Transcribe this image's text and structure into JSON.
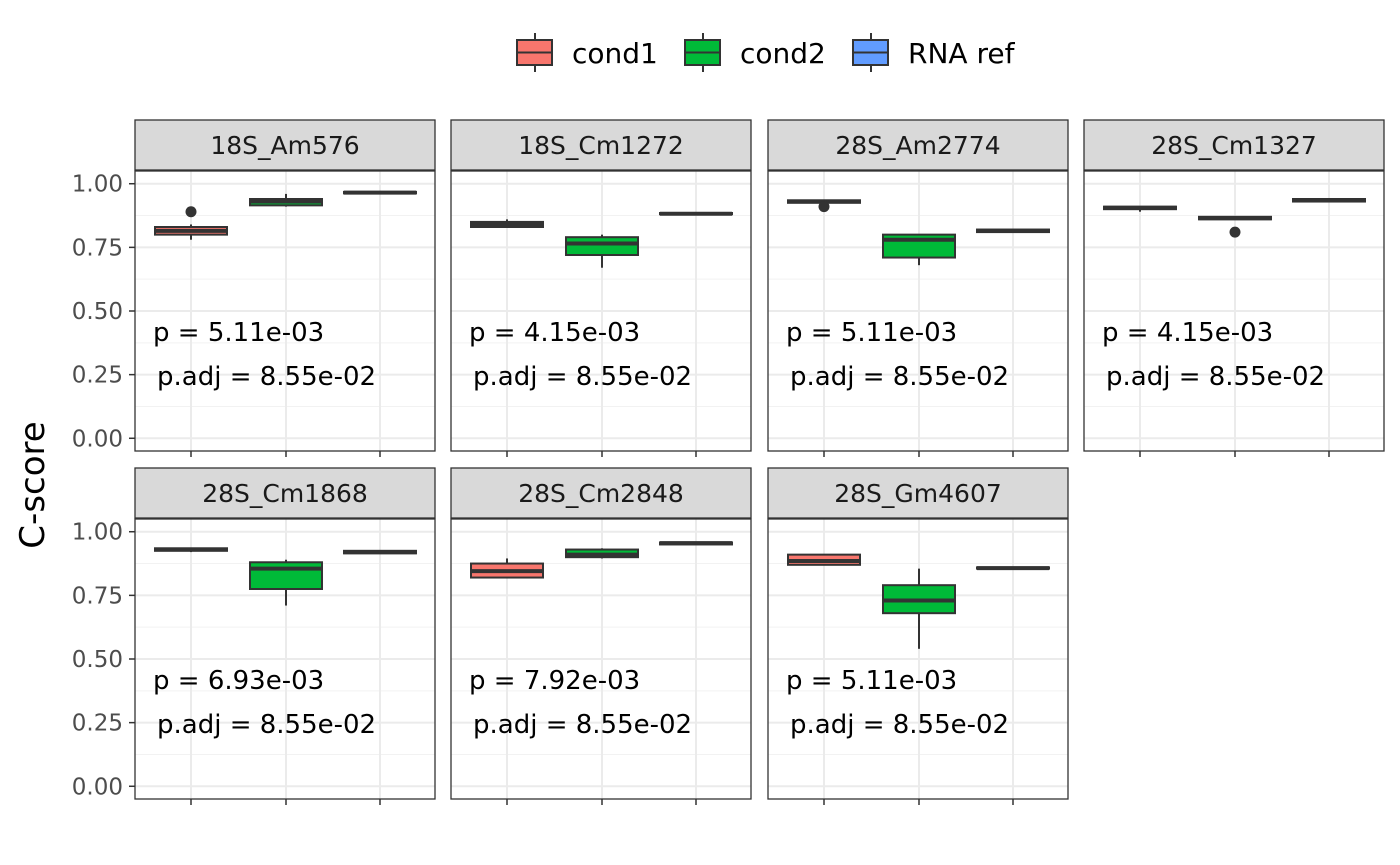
{
  "chart_data": {
    "type": "boxplot",
    "ylabel": "C-score",
    "xlabel": "",
    "ylim": [
      0,
      1.2
    ],
    "yticks": [
      "0.00",
      "0.25",
      "0.50",
      "0.75",
      "1.00"
    ],
    "grid": true,
    "legend_position": "top",
    "legend": [
      {
        "name": "cond1",
        "color": "#F8766D"
      },
      {
        "name": "cond2",
        "color": "#00BA38"
      },
      {
        "name": "RNA ref",
        "color": "#619CFF"
      }
    ],
    "panels": [
      {
        "title": "18S_Am576",
        "p_text": "p = 5.11e-03",
        "padj_text": "p.adj = 8.55e-02",
        "boxes": [
          {
            "group": "cond1",
            "min": 0.78,
            "q1": 0.8,
            "median": 0.815,
            "q3": 0.83,
            "max": 0.84,
            "outliers": [
              0.89
            ]
          },
          {
            "group": "cond2",
            "min": 0.91,
            "q1": 0.915,
            "median": 0.93,
            "q3": 0.94,
            "max": 0.96,
            "outliers": []
          },
          {
            "group": "RNA ref",
            "min": 0.962,
            "q1": 0.962,
            "median": 0.965,
            "q3": 0.968,
            "max": 0.968,
            "outliers": []
          }
        ]
      },
      {
        "title": "18S_Cm1272",
        "p_text": "p = 4.15e-03",
        "padj_text": "p.adj = 8.55e-02",
        "boxes": [
          {
            "group": "cond1",
            "min": 0.83,
            "q1": 0.83,
            "median": 0.84,
            "q3": 0.85,
            "max": 0.86,
            "outliers": []
          },
          {
            "group": "cond2",
            "min": 0.67,
            "q1": 0.72,
            "median": 0.765,
            "q3": 0.79,
            "max": 0.8,
            "outliers": []
          },
          {
            "group": "RNA ref",
            "min": 0.88,
            "q1": 0.88,
            "median": 0.882,
            "q3": 0.885,
            "max": 0.885,
            "outliers": []
          }
        ]
      },
      {
        "title": "28S_Am2774",
        "p_text": "p = 5.11e-03",
        "padj_text": "p.adj = 8.55e-02",
        "boxes": [
          {
            "group": "cond1",
            "min": 0.925,
            "q1": 0.925,
            "median": 0.93,
            "q3": 0.935,
            "max": 0.935,
            "outliers": [
              0.91
            ]
          },
          {
            "group": "cond2",
            "min": 0.68,
            "q1": 0.71,
            "median": 0.78,
            "q3": 0.8,
            "max": 0.8,
            "outliers": []
          },
          {
            "group": "RNA ref",
            "min": 0.81,
            "q1": 0.81,
            "median": 0.815,
            "q3": 0.82,
            "max": 0.82,
            "outliers": []
          }
        ]
      },
      {
        "title": "28S_Cm1327",
        "p_text": "p = 4.15e-03",
        "padj_text": "p.adj = 8.55e-02",
        "boxes": [
          {
            "group": "cond1",
            "min": 0.89,
            "q1": 0.9,
            "median": 0.905,
            "q3": 0.91,
            "max": 0.91,
            "outliers": []
          },
          {
            "group": "cond2",
            "min": 0.86,
            "q1": 0.86,
            "median": 0.865,
            "q3": 0.87,
            "max": 0.87,
            "outliers": [
              0.81
            ]
          },
          {
            "group": "RNA ref",
            "min": 0.93,
            "q1": 0.93,
            "median": 0.935,
            "q3": 0.94,
            "max": 0.94,
            "outliers": []
          }
        ]
      },
      {
        "title": "28S_Cm1868",
        "p_text": "p = 6.93e-03",
        "padj_text": "p.adj = 8.55e-02",
        "boxes": [
          {
            "group": "cond1",
            "min": 0.92,
            "q1": 0.925,
            "median": 0.93,
            "q3": 0.935,
            "max": 0.935,
            "outliers": []
          },
          {
            "group": "cond2",
            "min": 0.71,
            "q1": 0.775,
            "median": 0.855,
            "q3": 0.88,
            "max": 0.89,
            "outliers": []
          },
          {
            "group": "RNA ref",
            "min": 0.915,
            "q1": 0.915,
            "median": 0.92,
            "q3": 0.925,
            "max": 0.925,
            "outliers": []
          }
        ]
      },
      {
        "title": "28S_Cm2848",
        "p_text": "p = 7.92e-03",
        "padj_text": "p.adj = 8.55e-02",
        "boxes": [
          {
            "group": "cond1",
            "min": 0.82,
            "q1": 0.82,
            "median": 0.845,
            "q3": 0.875,
            "max": 0.895,
            "outliers": []
          },
          {
            "group": "cond2",
            "min": 0.895,
            "q1": 0.9,
            "median": 0.91,
            "q3": 0.93,
            "max": 0.935,
            "outliers": []
          },
          {
            "group": "RNA ref",
            "min": 0.95,
            "q1": 0.95,
            "median": 0.955,
            "q3": 0.958,
            "max": 0.958,
            "outliers": []
          }
        ]
      },
      {
        "title": "28S_Gm4607",
        "p_text": "p = 5.11e-03",
        "padj_text": "p.adj = 8.55e-02",
        "boxes": [
          {
            "group": "cond1",
            "min": 0.87,
            "q1": 0.87,
            "median": 0.885,
            "q3": 0.91,
            "max": 0.91,
            "outliers": []
          },
          {
            "group": "cond2",
            "min": 0.54,
            "q1": 0.68,
            "median": 0.73,
            "q3": 0.79,
            "max": 0.855,
            "outliers": []
          },
          {
            "group": "RNA ref",
            "min": 0.855,
            "q1": 0.855,
            "median": 0.857,
            "q3": 0.86,
            "max": 0.86,
            "outliers": []
          }
        ]
      }
    ]
  }
}
